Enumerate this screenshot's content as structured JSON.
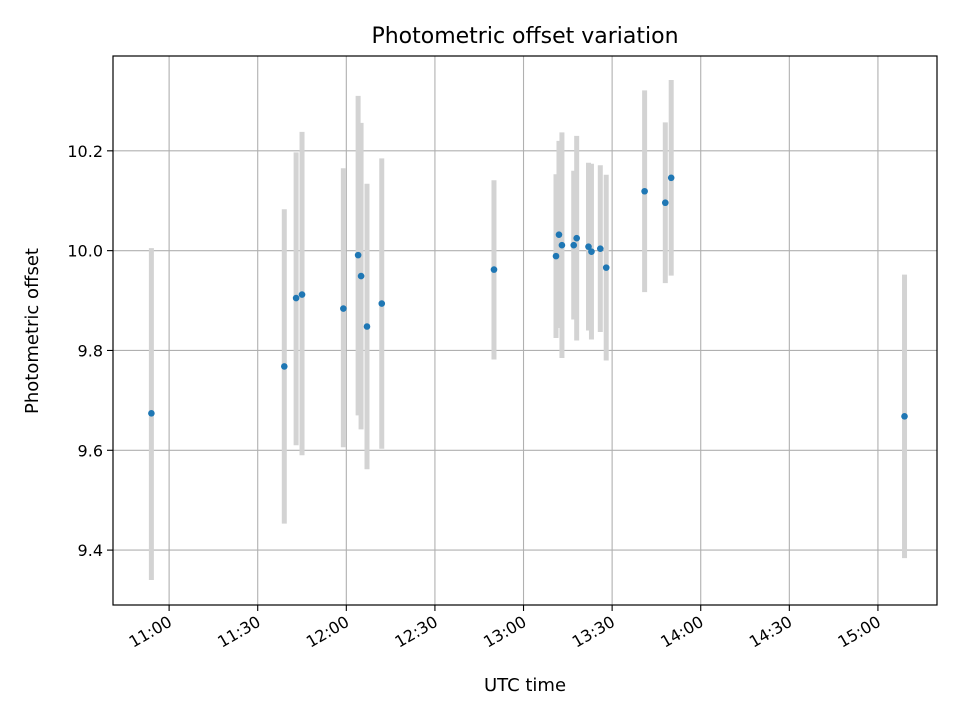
{
  "chart_data": {
    "type": "scatter",
    "title": "Photometric offset variation",
    "xlabel": "UTC time",
    "ylabel": "Photometric offset",
    "x_ticks": [
      "11:00",
      "11:30",
      "12:00",
      "12:30",
      "13:00",
      "13:30",
      "14:00",
      "14:30",
      "15:00"
    ],
    "y_ticks": [
      "9.4",
      "9.6",
      "9.8",
      "10.0",
      "10.2"
    ],
    "xlim": [
      "10:41",
      "15:20"
    ],
    "ylim": [
      9.29,
      10.39
    ],
    "grid": true,
    "colors": {
      "point": "#1f77b4",
      "errorbar": "#d3d3d3",
      "grid": "#b0b0b0"
    },
    "points": [
      {
        "time": "10:54",
        "value": 9.674,
        "low": 9.34,
        "high": 10.005
      },
      {
        "time": "11:39",
        "value": 9.768,
        "low": 9.453,
        "high": 10.083
      },
      {
        "time": "11:43",
        "value": 9.905,
        "low": 9.61,
        "high": 10.197
      },
      {
        "time": "11:45",
        "value": 9.912,
        "low": 9.59,
        "high": 10.238
      },
      {
        "time": "11:59",
        "value": 9.884,
        "low": 9.606,
        "high": 10.165
      },
      {
        "time": "12:04",
        "value": 9.991,
        "low": 9.67,
        "high": 10.31
      },
      {
        "time": "12:05",
        "value": 9.949,
        "low": 9.642,
        "high": 10.256
      },
      {
        "time": "12:07",
        "value": 9.848,
        "low": 9.562,
        "high": 10.134
      },
      {
        "time": "12:12",
        "value": 9.894,
        "low": 9.603,
        "high": 10.185
      },
      {
        "time": "12:50",
        "value": 9.962,
        "low": 9.782,
        "high": 10.141
      },
      {
        "time": "13:11",
        "value": 9.989,
        "low": 9.825,
        "high": 10.153
      },
      {
        "time": "13:12",
        "value": 10.032,
        "low": 9.845,
        "high": 10.22
      },
      {
        "time": "13:13",
        "value": 10.011,
        "low": 9.785,
        "high": 10.237
      },
      {
        "time": "13:17",
        "value": 10.011,
        "low": 9.862,
        "high": 10.16
      },
      {
        "time": "13:18",
        "value": 10.025,
        "low": 9.82,
        "high": 10.23
      },
      {
        "time": "13:22",
        "value": 10.008,
        "low": 9.84,
        "high": 10.176
      },
      {
        "time": "13:23",
        "value": 9.998,
        "low": 9.822,
        "high": 10.174
      },
      {
        "time": "13:26",
        "value": 10.004,
        "low": 9.837,
        "high": 10.171
      },
      {
        "time": "13:28",
        "value": 9.966,
        "low": 9.78,
        "high": 10.152
      },
      {
        "time": "13:41",
        "value": 10.119,
        "low": 9.917,
        "high": 10.321
      },
      {
        "time": "13:48",
        "value": 10.096,
        "low": 9.935,
        "high": 10.257
      },
      {
        "time": "13:50",
        "value": 10.146,
        "low": 9.95,
        "high": 10.342
      },
      {
        "time": "15:09",
        "value": 9.668,
        "low": 9.384,
        "high": 9.952
      }
    ]
  }
}
